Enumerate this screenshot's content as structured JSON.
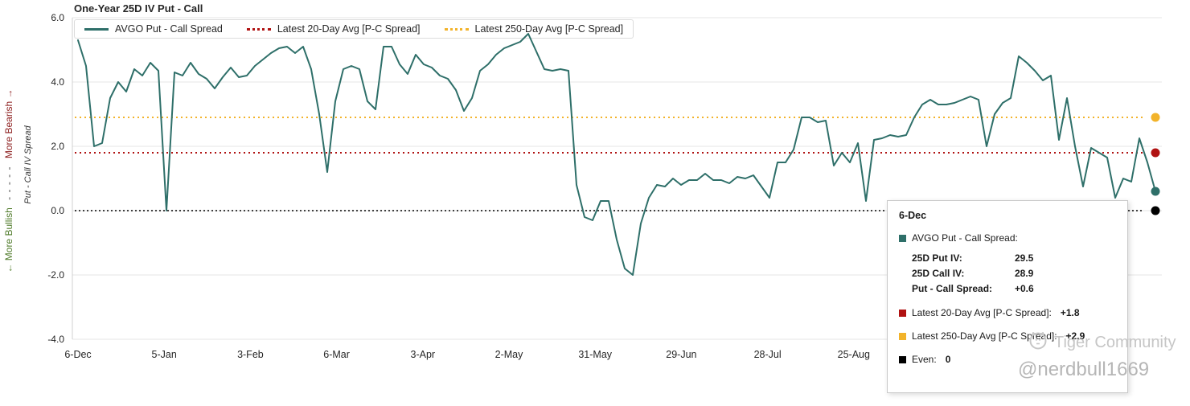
{
  "header": {
    "title": "One-Year 25D IV Put - Call"
  },
  "colors": {
    "series": "#2e6f69",
    "avg20": "#b01212",
    "avg250": "#f2b32a",
    "even": "#000000",
    "grid": "#e4e4e4",
    "watermark": "#c3c3c3"
  },
  "legend": {
    "items": [
      {
        "label": "AVGO Put - Call Spread"
      },
      {
        "label": "Latest 20-Day Avg [P-C Spread]"
      },
      {
        "label": "Latest 250-Day Avg [P-C Spread]"
      }
    ]
  },
  "axis_left": {
    "bullish": "← More Bullish",
    "dashes": "- - - - -",
    "bearish": "More Bearish →",
    "title": "Put - Call IV Spread"
  },
  "chart_data": {
    "type": "line",
    "title": "One-Year 25D IV Put - Call",
    "ylabel": "Put - Call IV Spread",
    "ylim": [
      -4,
      6
    ],
    "grid": "horizontal",
    "legend_position": "top-left",
    "y_ticks": [
      6,
      4,
      2,
      0,
      -2,
      -4
    ],
    "y_tick_labels": [
      "6.0",
      "4.0",
      "2.0",
      "0.0",
      "-2.0",
      "-4.0"
    ],
    "x_tick_labels": [
      "6-Dec",
      "5-Jan",
      "3-Feb",
      "6-Mar",
      "3-Apr",
      "2-May",
      "31-May",
      "29-Jun",
      "28-Jul",
      "25-Aug"
    ],
    "series": [
      {
        "name": "AVGO Put - Call Spread",
        "color_key": "series",
        "style": "solid",
        "values": [
          5.3,
          4.5,
          2.0,
          2.1,
          3.5,
          4.0,
          3.7,
          4.4,
          4.2,
          4.6,
          4.35,
          0.0,
          4.3,
          4.2,
          4.6,
          4.25,
          4.1,
          3.8,
          4.15,
          4.45,
          4.15,
          4.2,
          4.5,
          4.7,
          4.9,
          5.05,
          5.1,
          4.9,
          5.1,
          4.4,
          3.0,
          1.2,
          3.4,
          4.4,
          4.5,
          4.4,
          3.4,
          3.15,
          5.1,
          5.1,
          4.55,
          4.25,
          4.85,
          4.55,
          4.45,
          4.2,
          4.1,
          3.75,
          3.1,
          3.5,
          4.35,
          4.55,
          4.85,
          5.05,
          5.15,
          5.25,
          5.5,
          4.95,
          4.4,
          4.35,
          4.4,
          4.35,
          0.8,
          -0.2,
          -0.3,
          0.3,
          0.3,
          -0.9,
          -1.8,
          -2.0,
          -0.4,
          0.4,
          0.8,
          0.75,
          1.0,
          0.8,
          0.95,
          0.95,
          1.15,
          0.95,
          0.95,
          0.85,
          1.05,
          1.0,
          1.1,
          0.75,
          0.4,
          1.5,
          1.5,
          1.9,
          2.9,
          2.9,
          2.75,
          2.8,
          1.4,
          1.8,
          1.5,
          2.1,
          0.3,
          2.2,
          2.25,
          2.35,
          2.3,
          2.35,
          2.9,
          3.3,
          3.45,
          3.3,
          3.3,
          3.35,
          3.45,
          3.55,
          3.45,
          2.0,
          3.0,
          3.35,
          3.5,
          4.8,
          4.6,
          4.35,
          4.05,
          4.2,
          2.2,
          3.5,
          2.0,
          0.75,
          1.95,
          1.8,
          1.65,
          0.4,
          1.0,
          0.9,
          2.25,
          1.5,
          0.6
        ]
      },
      {
        "name": "Latest 20-Day Avg [P-C Spread]",
        "color_key": "avg20",
        "style": "dotted",
        "constant": 1.8
      },
      {
        "name": "Latest 250-Day Avg [P-C Spread]",
        "color_key": "avg250",
        "style": "dotted",
        "constant": 2.9
      },
      {
        "name": "Even",
        "color_key": "even",
        "style": "dotted",
        "constant": 0
      }
    ],
    "end_markers": [
      {
        "name": "250day-avg",
        "value": 2.9,
        "color_key": "avg250"
      },
      {
        "name": "20day-avg",
        "value": 1.8,
        "color_key": "avg20"
      },
      {
        "name": "series-last",
        "value": 0.6,
        "color_key": "series"
      },
      {
        "name": "even",
        "value": 0,
        "color_key": "even"
      }
    ]
  },
  "tooltip": {
    "date": "6-Dec",
    "series_label": "AVGO Put - Call Spread:",
    "rows": [
      {
        "label": "25D Put IV:",
        "value": "29.5"
      },
      {
        "label": "25D Call IV:",
        "value": "28.9"
      },
      {
        "label": "Put - Call Spread:",
        "value": "+0.6"
      }
    ],
    "avg20_label": "Latest 20-Day Avg [P-C Spread]:",
    "avg20_value": "+1.8",
    "avg250_label": "Latest 250-Day Avg [P-C Spread]:",
    "avg250_value": "+2.9",
    "even_label": "Even:",
    "even_value": "0"
  },
  "watermark": {
    "brand": "Tiger Community",
    "handle": "@nerdbull1669"
  }
}
